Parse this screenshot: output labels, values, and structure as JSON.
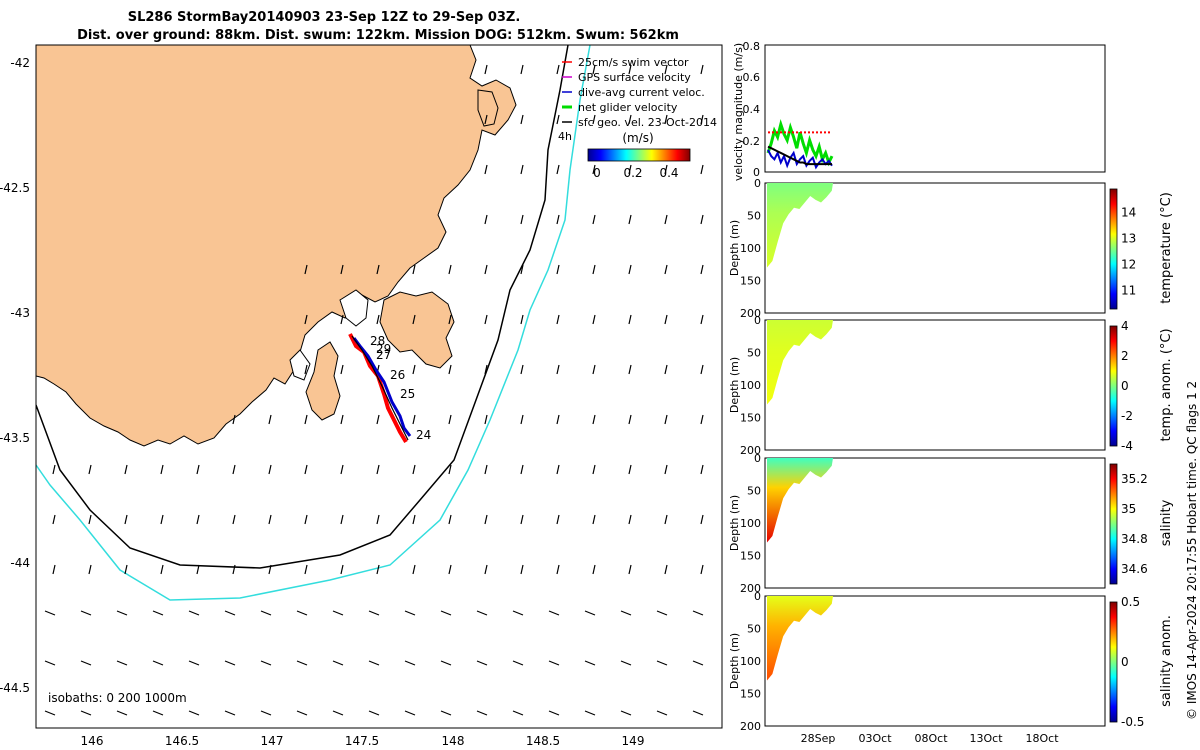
{
  "chart_data": [
    {
      "type": "map",
      "title_line1": "SL286 StormBay20140903 23-Sep 12Z to 29-Sep 03Z.",
      "title_line2": "Dist. over ground: 88km. Dist. swum: 122km. Mission DOG: 512km. Swum: 562km",
      "x_ticks": [
        "146",
        "146.5",
        "147",
        "147.5",
        "148",
        "148.5",
        "149"
      ],
      "y_ticks": [
        "-42",
        "-42.5",
        "-43",
        "-43.5",
        "-44",
        "-44.5"
      ],
      "xlim": [
        145.65,
        149.45
      ],
      "ylim": [
        -44.65,
        -41.95
      ],
      "legend": [
        "25cm/s swim vector",
        "GPS surface velocity",
        "dive-avg current veloc.",
        "net glider velocity",
        "sfc geo. vel. 23-Oct-2014"
      ],
      "legend_marker": "4h",
      "colorbar_title": "(m/s)",
      "colorbar_ticks": [
        "0",
        "0.2",
        "0.4"
      ],
      "track_day_labels": [
        "28",
        "29",
        "27",
        "26",
        "25",
        "24"
      ],
      "isobaths_label": "isobaths: 0   200  1000m",
      "colors": {
        "land": "#f9c594",
        "coast_0m": "#000000",
        "isobath_1000m": "#33dddd",
        "track_red": "#ff0000",
        "track_blue": "#0000cc"
      }
    },
    {
      "type": "line",
      "ylabel": "velocity magnitude (m/s)",
      "y_ticks": [
        "0",
        "0.2",
        "0.4",
        "0.6",
        "0.8"
      ],
      "ylim": [
        0,
        0.8
      ],
      "series": [
        {
          "name": "net glider velocity",
          "color": "#00dd00",
          "values": [
            0.12,
            0.18,
            0.26,
            0.22,
            0.3,
            0.24,
            0.2,
            0.28,
            0.22,
            0.15,
            0.25,
            0.18,
            0.12,
            0.2,
            0.14,
            0.1,
            0.16,
            0.08,
            0.12,
            0.06,
            0.1
          ]
        },
        {
          "name": "dive-avg current veloc.",
          "color": "#0000cc",
          "values": [
            0.14,
            0.1,
            0.08,
            0.12,
            0.06,
            0.1,
            0.04,
            0.09,
            0.12,
            0.05,
            0.08,
            0.1,
            0.04,
            0.07,
            0.09,
            0.03,
            0.06,
            0.08,
            0.05,
            0.07,
            0.04
          ]
        },
        {
          "name": "sfc geo. vel.",
          "color": "#000000",
          "values": [
            0.16,
            0.15,
            0.14,
            0.13,
            0.12,
            0.11,
            0.1,
            0.09,
            0.08,
            0.07,
            0.06,
            0.06,
            0.05,
            0.05,
            0.05,
            0.05,
            0.05,
            0.05,
            0.05,
            0.05,
            0.05
          ]
        },
        {
          "name": "25cm/s swim vector",
          "color": "#ff0000",
          "values": [
            0.25,
            0.25,
            0.25,
            0.25,
            0.25,
            0.25,
            0.25,
            0.25,
            0.25,
            0.25,
            0.25,
            0.25,
            0.25,
            0.25,
            0.25,
            0.25,
            0.25,
            0.25,
            0.25,
            0.25,
            0.25
          ]
        }
      ]
    },
    {
      "type": "heatmap",
      "ylabel": "Depth (m)",
      "y_ticks": [
        "0",
        "50",
        "100",
        "150",
        "200"
      ],
      "ylim": [
        0,
        200
      ],
      "colorbar_label": "temperature (°C)",
      "colorbar_ticks": [
        "11",
        "12",
        "13",
        "14"
      ],
      "crange": [
        10.3,
        14.9
      ],
      "surface_value": 12.6,
      "deep_value": 13.0
    },
    {
      "type": "heatmap",
      "ylabel": "Depth (m)",
      "y_ticks": [
        "0",
        "50",
        "100",
        "150",
        "200"
      ],
      "ylim": [
        0,
        200
      ],
      "colorbar_label": "temp. anom. (°C)",
      "colorbar_ticks": [
        "4",
        "2",
        "0",
        "-2",
        "-4"
      ],
      "crange": [
        -4,
        4
      ],
      "surface_value": 0.6,
      "deep_value": 0.9
    },
    {
      "type": "heatmap",
      "ylabel": "Depth (m)",
      "y_ticks": [
        "0",
        "50",
        "100",
        "150",
        "200"
      ],
      "ylim": [
        0,
        200
      ],
      "colorbar_label": "salinity",
      "colorbar_ticks": [
        "35.2",
        "35",
        "34.8",
        "34.6"
      ],
      "crange": [
        34.5,
        35.3
      ],
      "surface_value": 34.85,
      "deep_value": 35.22
    },
    {
      "type": "heatmap",
      "ylabel": "Depth (m)",
      "y_ticks": [
        "0",
        "50",
        "100",
        "150",
        "200"
      ],
      "ylim": [
        0,
        200
      ],
      "colorbar_label": "salinity anom.",
      "colorbar_ticks": [
        "0.5",
        "0",
        "-0.5"
      ],
      "crange": [
        -0.5,
        0.5
      ],
      "surface_value": 0.1,
      "deep_value": 0.3,
      "x_ticks": [
        "28Sep",
        "03Oct",
        "08Oct",
        "13Oct",
        "18Oct"
      ]
    }
  ],
  "footer": "© IMOS 14-Apr-2024 20:17:55 Hobart time. QC flags 1  2"
}
